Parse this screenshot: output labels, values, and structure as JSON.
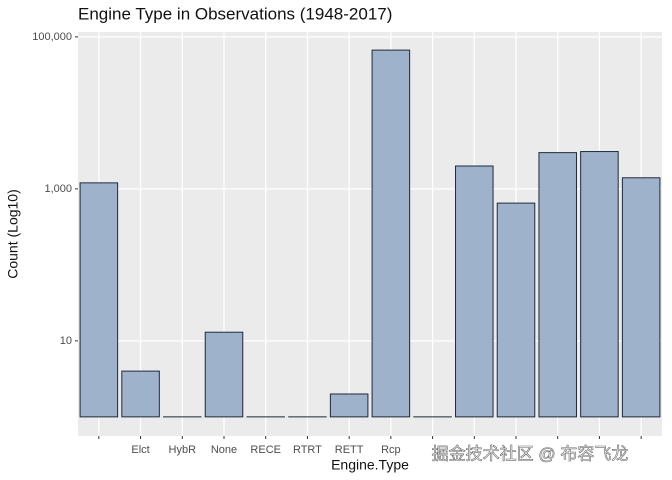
{
  "chart_data": {
    "type": "bar",
    "title": "Engine Type in Observations (1948-2017)",
    "x_label": "Engine.Type",
    "y_label": "Count (Log10)",
    "categories": [
      null,
      "Elct",
      "HybR",
      "None",
      "RECE",
      "RTRT",
      "RETT",
      "Rcp",
      null,
      null,
      null,
      null,
      null,
      null
    ],
    "values": [
      1200,
      4,
      1,
      13,
      1,
      1,
      2,
      67000,
      1,
      2000,
      650,
      3000,
      3100,
      1400
    ],
    "color": "#9fb2cc",
    "edge_color": "#1f2a3a",
    "log_y": true,
    "ylim": [
      0.56,
      116000
    ],
    "yticks": [
      10,
      {
        "value": 1000,
        "label": "1,000"
      },
      {
        "value": 100000,
        "label": "100,000"
      }
    ],
    "grid": true,
    "watermark": "掘金技术社区 @ 布容飞龙"
  }
}
